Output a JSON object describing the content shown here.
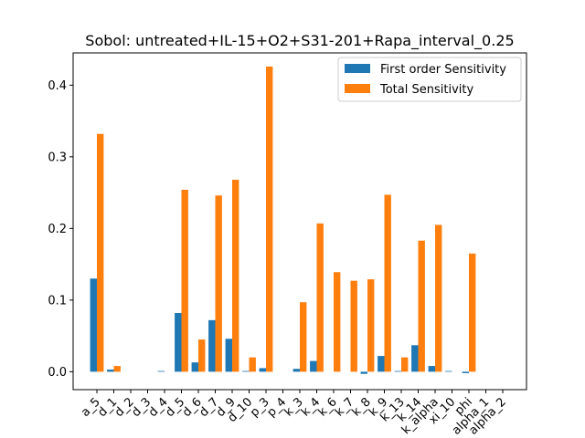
{
  "chart_data": {
    "type": "bar",
    "title": "Sobol: untreated+IL-15+O2+S31-201+Rapa_interval_0.25",
    "xlabel": "",
    "ylabel": "",
    "ylim": [
      -0.025,
      0.445
    ],
    "yticks": [
      0.0,
      0.1,
      0.2,
      0.3,
      0.4
    ],
    "ytick_labels": [
      "0.0",
      "0.1",
      "0.2",
      "0.3",
      "0.4"
    ],
    "legend_position": "top-right",
    "categories": [
      "a_5",
      "d_1",
      "d_2",
      "d_3",
      "d_4",
      "d_5",
      "d_6",
      "d_7",
      "d_9",
      "d_10",
      "p_3",
      "p_4",
      "k_3",
      "k_4",
      "k_6",
      "k_7",
      "k_8",
      "k_9",
      "k_13",
      "k_14",
      "k_alpha",
      "xi_10",
      "phi",
      "alpha_1",
      "alpha_2"
    ],
    "series": [
      {
        "name": "First order Sensitivity",
        "color": "#1f77b4",
        "values": [
          0.13,
          0.003,
          0.0,
          0.0,
          0.001,
          0.082,
          0.013,
          0.072,
          0.046,
          0.001,
          0.005,
          0.0,
          0.004,
          0.015,
          0.0,
          0.0,
          -0.003,
          0.022,
          0.001,
          0.037,
          0.008,
          0.001,
          -0.002,
          0.0,
          0.0
        ]
      },
      {
        "name": "Total Sensitivity",
        "color": "#ff7f0e",
        "values": [
          0.332,
          0.008,
          0.0,
          0.0,
          0.0,
          0.254,
          0.045,
          0.246,
          0.268,
          0.02,
          0.426,
          0.0,
          0.097,
          0.207,
          0.139,
          0.127,
          0.129,
          0.247,
          0.02,
          0.183,
          0.205,
          0.0,
          0.165,
          0.0,
          0.0
        ]
      }
    ]
  }
}
